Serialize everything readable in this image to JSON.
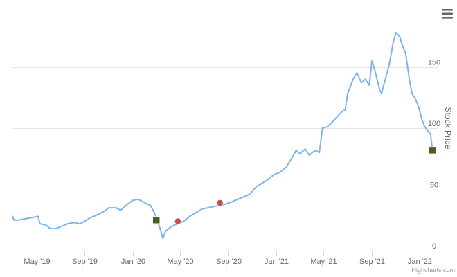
{
  "chart_data": {
    "type": "line",
    "x_axis": {
      "type": "datetime",
      "range": [
        "2019-03-01",
        "2022-02-15"
      ],
      "ticks": [
        {
          "date": "2019-05-01",
          "label": "May '19"
        },
        {
          "date": "2019-09-01",
          "label": "Sep '19"
        },
        {
          "date": "2020-01-01",
          "label": "Jan '20"
        },
        {
          "date": "2020-05-01",
          "label": "May '20"
        },
        {
          "date": "2020-09-01",
          "label": "Sep '20"
        },
        {
          "date": "2021-01-01",
          "label": "Jan '21"
        },
        {
          "date": "2021-05-01",
          "label": "May '21"
        },
        {
          "date": "2021-09-01",
          "label": "Sep '21"
        },
        {
          "date": "2022-01-01",
          "label": "Jan '22"
        }
      ]
    },
    "y_axis": {
      "title": "Stock Price",
      "position": "right",
      "range": [
        0,
        200
      ],
      "ticks": [
        0,
        50,
        100,
        150
      ]
    },
    "grid": "horizontal",
    "series": [
      {
        "color": "#7cb5ec",
        "points": [
          [
            "2019-03-01",
            28
          ],
          [
            "2019-03-05",
            25
          ],
          [
            "2019-03-15",
            25
          ],
          [
            "2019-04-01",
            26
          ],
          [
            "2019-04-20",
            27
          ],
          [
            "2019-05-05",
            28
          ],
          [
            "2019-05-10",
            22
          ],
          [
            "2019-05-25",
            21
          ],
          [
            "2019-06-05",
            18
          ],
          [
            "2019-06-20",
            18
          ],
          [
            "2019-07-05",
            20
          ],
          [
            "2019-07-20",
            22
          ],
          [
            "2019-08-05",
            23
          ],
          [
            "2019-08-20",
            22
          ],
          [
            "2019-09-01",
            24
          ],
          [
            "2019-09-15",
            27
          ],
          [
            "2019-10-01",
            29
          ],
          [
            "2019-10-20",
            32
          ],
          [
            "2019-11-01",
            35
          ],
          [
            "2019-11-20",
            35
          ],
          [
            "2019-12-01",
            33
          ],
          [
            "2019-12-15",
            37
          ],
          [
            "2020-01-01",
            41
          ],
          [
            "2020-01-15",
            42
          ],
          [
            "2020-02-01",
            39
          ],
          [
            "2020-02-15",
            37
          ],
          [
            "2020-02-25",
            31
          ],
          [
            "2020-03-05",
            23
          ],
          [
            "2020-03-12",
            17
          ],
          [
            "2020-03-18",
            10
          ],
          [
            "2020-03-25",
            16
          ],
          [
            "2020-04-10",
            20
          ],
          [
            "2020-04-25",
            22
          ],
          [
            "2020-05-10",
            24
          ],
          [
            "2020-05-25",
            28
          ],
          [
            "2020-06-10",
            31
          ],
          [
            "2020-06-25",
            34
          ],
          [
            "2020-07-10",
            35
          ],
          [
            "2020-07-25",
            36
          ],
          [
            "2020-08-10",
            37
          ],
          [
            "2020-08-25",
            38
          ],
          [
            "2020-09-10",
            40
          ],
          [
            "2020-09-25",
            42
          ],
          [
            "2020-10-10",
            44
          ],
          [
            "2020-10-25",
            46
          ],
          [
            "2020-11-10",
            52
          ],
          [
            "2020-11-25",
            55
          ],
          [
            "2020-12-10",
            58
          ],
          [
            "2020-12-25",
            62
          ],
          [
            "2021-01-10",
            64
          ],
          [
            "2021-01-25",
            68
          ],
          [
            "2021-02-10",
            76
          ],
          [
            "2021-02-20",
            82
          ],
          [
            "2021-03-01",
            79
          ],
          [
            "2021-03-15",
            83
          ],
          [
            "2021-03-25",
            78
          ],
          [
            "2021-04-10",
            82
          ],
          [
            "2021-04-20",
            80
          ],
          [
            "2021-04-28",
            100
          ],
          [
            "2021-05-10",
            101
          ],
          [
            "2021-05-20",
            104
          ],
          [
            "2021-06-01",
            108
          ],
          [
            "2021-06-15",
            113
          ],
          [
            "2021-06-25",
            115
          ],
          [
            "2021-07-01",
            128
          ],
          [
            "2021-07-15",
            140
          ],
          [
            "2021-07-25",
            145
          ],
          [
            "2021-08-05",
            137
          ],
          [
            "2021-08-15",
            140
          ],
          [
            "2021-08-25",
            135
          ],
          [
            "2021-09-01",
            155
          ],
          [
            "2021-09-10",
            145
          ],
          [
            "2021-09-20",
            132
          ],
          [
            "2021-09-25",
            128
          ],
          [
            "2021-10-05",
            140
          ],
          [
            "2021-10-15",
            152
          ],
          [
            "2021-10-25",
            170
          ],
          [
            "2021-11-01",
            178
          ],
          [
            "2021-11-10",
            175
          ],
          [
            "2021-11-20",
            165
          ],
          [
            "2021-11-25",
            162
          ],
          [
            "2021-12-05",
            140
          ],
          [
            "2021-12-12",
            128
          ],
          [
            "2021-12-20",
            124
          ],
          [
            "2021-12-28",
            118
          ],
          [
            "2022-01-05",
            108
          ],
          [
            "2022-01-12",
            102
          ],
          [
            "2022-01-20",
            98
          ],
          [
            "2022-01-28",
            95
          ],
          [
            "2022-02-02",
            82
          ]
        ]
      }
    ],
    "markers": [
      {
        "date": "2020-03-01",
        "value": 25,
        "shape": "square",
        "color": "#4b5f1f"
      },
      {
        "date": "2020-04-25",
        "value": 24,
        "shape": "circle",
        "color": "#c94c4c"
      },
      {
        "date": "2020-08-10",
        "value": 39,
        "shape": "circle",
        "color": "#c94c4c"
      },
      {
        "date": "2022-02-02",
        "value": 82,
        "shape": "square",
        "color": "#4b5f1f"
      }
    ]
  },
  "colors": {
    "line": "#7cb5ec",
    "grid": "#e6e6e6",
    "axis_line": "#ccd6eb",
    "marker_square": "#4b5f1f",
    "marker_circle": "#c94c4c"
  },
  "menu": {
    "icon": "hamburger-menu-icon"
  },
  "credits": {
    "label": "Highcharts.com"
  }
}
